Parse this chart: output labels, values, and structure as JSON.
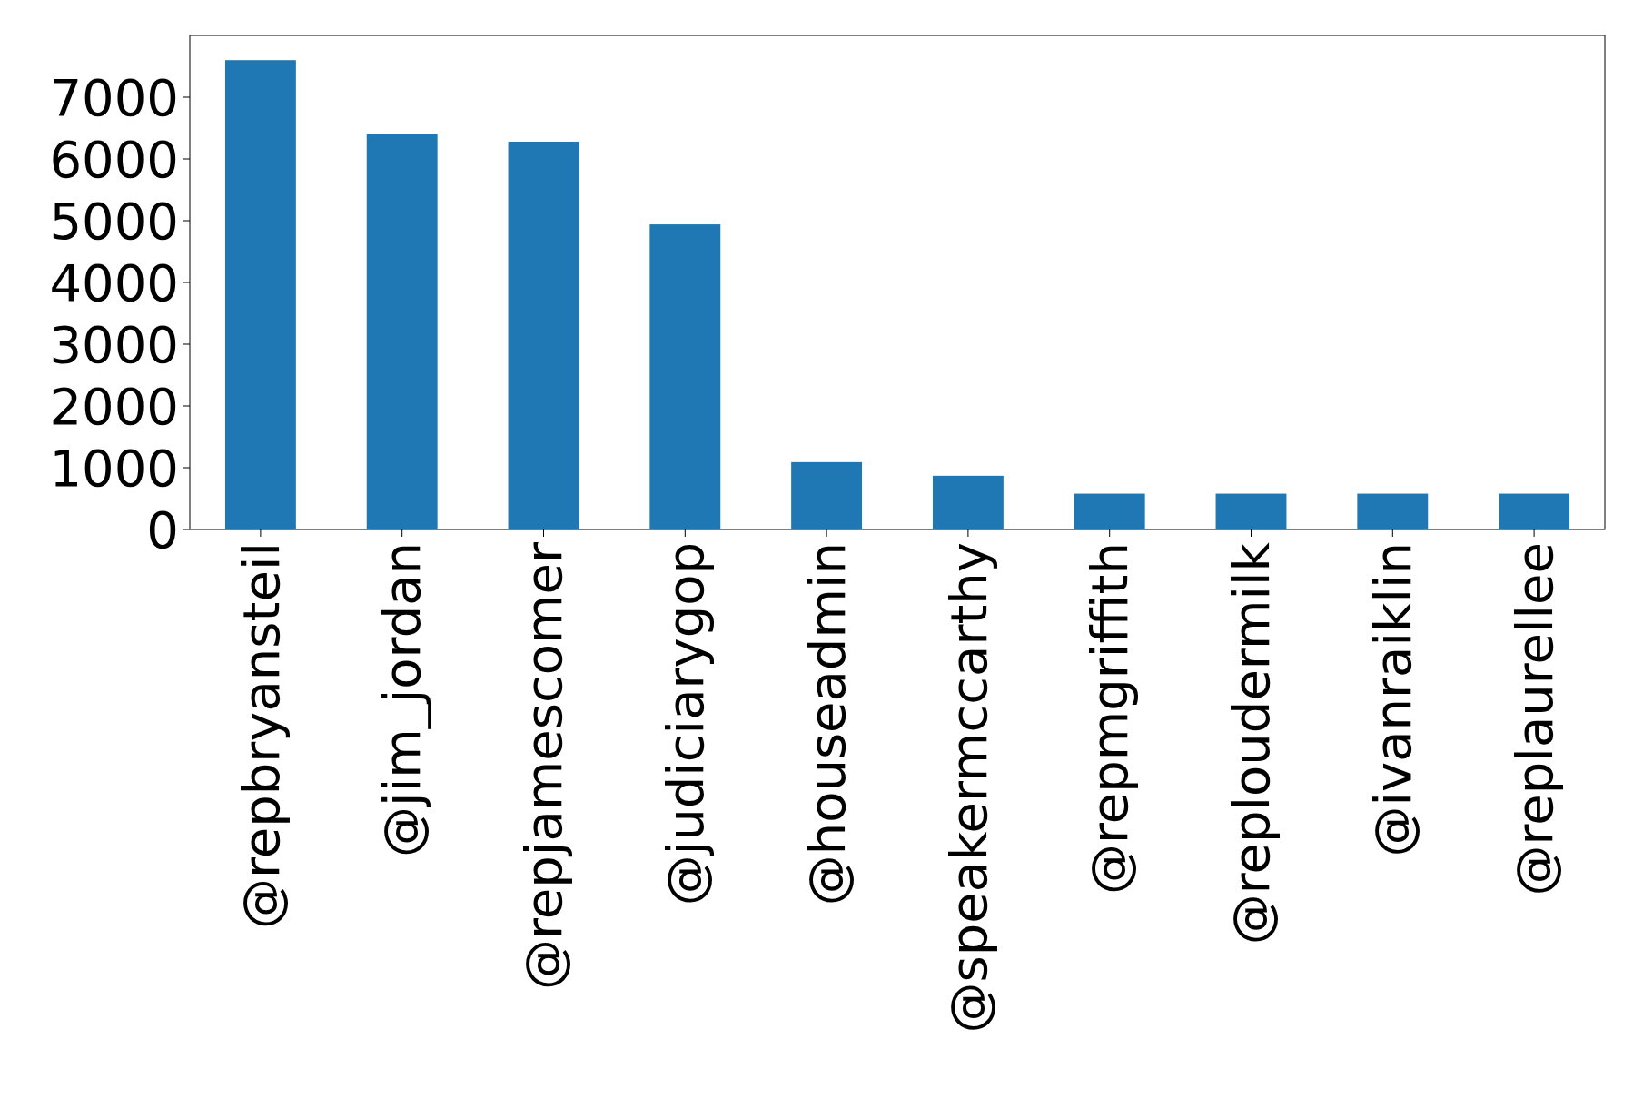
{
  "chart_data": {
    "type": "bar",
    "categories": [
      "@repbryansteil",
      "@jim_jordan",
      "@repjamescomer",
      "@judiciarygop",
      "@houseadmin",
      "@speakermccarthy",
      "@repmgriffith",
      "@reploudermilk",
      "@ivanraiklin",
      "@replaurellee"
    ],
    "values": [
      7600,
      6400,
      6280,
      4940,
      1090,
      870,
      580,
      580,
      580,
      580
    ],
    "color": "#1f77b4",
    "ylim": [
      0,
      8000
    ],
    "yticks": [
      0,
      1000,
      2000,
      3000,
      4000,
      5000,
      6000,
      7000
    ],
    "grid": false
  }
}
